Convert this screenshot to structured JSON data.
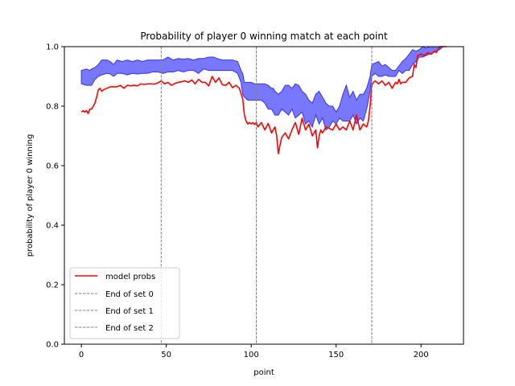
{
  "chart_data": {
    "type": "line",
    "title": "Probability of player 0 winning match at each point",
    "xlabel": "point",
    "ylabel": "probability of player 0 winning",
    "xlim": [
      -10,
      225
    ],
    "ylim": [
      0.0,
      1.0
    ],
    "xticks": [
      0,
      50,
      100,
      150,
      200
    ],
    "xtick_labels": [
      "0",
      "50",
      "100",
      "150",
      "200"
    ],
    "yticks": [
      0.0,
      0.2,
      0.4,
      0.6,
      0.8,
      1.0
    ],
    "ytick_labels": [
      "0.0",
      "0.2",
      "0.4",
      "0.6",
      "0.8",
      "1.0"
    ],
    "grid": false,
    "legend_position": "lower-left",
    "colors": {
      "model": "#ff0000",
      "band_fill": "#7070ff",
      "band_edge": "#3333ee",
      "set_line": "#808080"
    },
    "series": [
      {
        "name": "model probs",
        "style": "solid",
        "color": "#ff0000",
        "x": [
          0,
          1,
          2,
          3,
          4,
          5,
          6,
          7,
          8,
          9,
          10,
          11,
          12,
          13,
          15,
          17,
          19,
          21,
          23,
          25,
          27,
          29,
          31,
          33,
          35,
          37,
          39,
          41,
          43,
          45,
          47,
          49,
          51,
          53,
          55,
          57,
          59,
          61,
          63,
          65,
          67,
          69,
          71,
          73,
          75,
          77,
          79,
          81,
          83,
          85,
          87,
          89,
          91,
          93,
          95,
          96,
          97,
          98,
          99,
          100,
          101,
          102,
          103,
          104,
          106,
          108,
          110,
          112,
          114,
          115,
          116,
          117,
          118,
          120,
          122,
          124,
          126,
          128,
          130,
          132,
          134,
          136,
          138,
          139,
          140,
          141,
          142,
          144,
          146,
          148,
          150,
          152,
          154,
          156,
          158,
          160,
          162,
          164,
          166,
          168,
          169,
          170,
          171,
          172,
          173,
          175,
          177,
          179,
          181,
          183,
          185,
          186,
          187,
          188,
          189,
          191,
          193,
          195,
          196,
          197,
          198,
          200,
          202,
          204,
          206,
          208,
          209,
          210,
          211,
          212,
          213,
          214,
          215
        ],
        "y": [
          0.78,
          0.785,
          0.78,
          0.785,
          0.775,
          0.79,
          0.79,
          0.8,
          0.81,
          0.83,
          0.855,
          0.86,
          0.85,
          0.855,
          0.86,
          0.865,
          0.865,
          0.865,
          0.87,
          0.86,
          0.87,
          0.868,
          0.87,
          0.868,
          0.875,
          0.873,
          0.875,
          0.875,
          0.874,
          0.878,
          0.885,
          0.875,
          0.88,
          0.87,
          0.876,
          0.88,
          0.882,
          0.885,
          0.88,
          0.888,
          0.875,
          0.89,
          0.88,
          0.88,
          0.868,
          0.9,
          0.88,
          0.895,
          0.872,
          0.87,
          0.88,
          0.862,
          0.87,
          0.86,
          0.825,
          0.77,
          0.75,
          0.74,
          0.745,
          0.74,
          0.745,
          0.738,
          0.745,
          0.73,
          0.745,
          0.72,
          0.742,
          0.71,
          0.73,
          0.7,
          0.64,
          0.67,
          0.695,
          0.71,
          0.69,
          0.72,
          0.745,
          0.705,
          0.76,
          0.72,
          0.74,
          0.7,
          0.72,
          0.66,
          0.7,
          0.72,
          0.71,
          0.73,
          0.725,
          0.72,
          0.74,
          0.72,
          0.73,
          0.72,
          0.75,
          0.72,
          0.77,
          0.72,
          0.74,
          0.73,
          0.75,
          0.8,
          0.87,
          0.88,
          0.885,
          0.875,
          0.885,
          0.87,
          0.88,
          0.86,
          0.88,
          0.875,
          0.89,
          0.875,
          0.88,
          0.88,
          0.895,
          0.9,
          0.94,
          0.93,
          0.97,
          0.975,
          0.97,
          0.98,
          0.975,
          0.985,
          0.98,
          0.99,
          1.0,
          1.0,
          1.0,
          1.0,
          1.0
        ]
      }
    ],
    "band": {
      "x": [
        0,
        3,
        5,
        6,
        8,
        10,
        12,
        15,
        17,
        19,
        21,
        24,
        27,
        30,
        33,
        36,
        39,
        42,
        45,
        48,
        51,
        54,
        57,
        60,
        63,
        66,
        69,
        72,
        75,
        78,
        80,
        83,
        86,
        89,
        92,
        94,
        95,
        96,
        98,
        100,
        102,
        104,
        106,
        108,
        110,
        112,
        113,
        114,
        116,
        118,
        120,
        122,
        124,
        126,
        128,
        130,
        132,
        134,
        136,
        138,
        140,
        142,
        144,
        146,
        148,
        150,
        152,
        154,
        156,
        158,
        160,
        162,
        164,
        166,
        168,
        170,
        171,
        173,
        175,
        177,
        179,
        181,
        183,
        185,
        187,
        189,
        191,
        193,
        195,
        197,
        199,
        201,
        203,
        205,
        207,
        209,
        211,
        213,
        215
      ],
      "lower": [
        0.875,
        0.87,
        0.87,
        0.87,
        0.89,
        0.9,
        0.905,
        0.91,
        0.908,
        0.9,
        0.91,
        0.91,
        0.905,
        0.91,
        0.908,
        0.91,
        0.91,
        0.915,
        0.915,
        0.91,
        0.915,
        0.915,
        0.92,
        0.915,
        0.92,
        0.92,
        0.91,
        0.925,
        0.92,
        0.92,
        0.92,
        0.92,
        0.92,
        0.92,
        0.91,
        0.88,
        0.84,
        0.83,
        0.82,
        0.82,
        0.82,
        0.82,
        0.82,
        0.81,
        0.79,
        0.79,
        0.78,
        0.77,
        0.77,
        0.79,
        0.78,
        0.77,
        0.79,
        0.76,
        0.77,
        0.78,
        0.74,
        0.75,
        0.73,
        0.77,
        0.74,
        0.76,
        0.72,
        0.73,
        0.75,
        0.74,
        0.76,
        0.75,
        0.75,
        0.75,
        0.77,
        0.74,
        0.76,
        0.75,
        0.79,
        0.85,
        0.9,
        0.91,
        0.9,
        0.9,
        0.905,
        0.9,
        0.9,
        0.9,
        0.92,
        0.91,
        0.92,
        0.92,
        0.94,
        0.95,
        0.965,
        0.965,
        0.97,
        0.975,
        0.98,
        0.985,
        0.99,
        1.0,
        1.0
      ],
      "upper": [
        0.92,
        0.925,
        0.92,
        0.925,
        0.93,
        0.94,
        0.955,
        0.955,
        0.95,
        0.94,
        0.955,
        0.95,
        0.955,
        0.95,
        0.955,
        0.95,
        0.955,
        0.955,
        0.955,
        0.955,
        0.965,
        0.955,
        0.96,
        0.958,
        0.96,
        0.955,
        0.96,
        0.96,
        0.965,
        0.965,
        0.96,
        0.955,
        0.955,
        0.955,
        0.95,
        0.92,
        0.91,
        0.88,
        0.88,
        0.88,
        0.875,
        0.875,
        0.875,
        0.875,
        0.87,
        0.86,
        0.86,
        0.85,
        0.84,
        0.85,
        0.87,
        0.87,
        0.86,
        0.875,
        0.87,
        0.85,
        0.84,
        0.82,
        0.81,
        0.84,
        0.85,
        0.83,
        0.81,
        0.8,
        0.8,
        0.78,
        0.8,
        0.84,
        0.87,
        0.83,
        0.85,
        0.82,
        0.84,
        0.84,
        0.86,
        0.9,
        0.94,
        0.945,
        0.95,
        0.935,
        0.94,
        0.93,
        0.92,
        0.92,
        0.935,
        0.95,
        0.96,
        0.975,
        0.99,
        0.985,
        0.99,
        1.0,
        0.995,
        1.0,
        1.0,
        1.0,
        1.0,
        1.0,
        1.0
      ]
    },
    "set_ends": [
      {
        "name": "End of set 0",
        "x": 47
      },
      {
        "name": "End of set 1",
        "x": 103
      },
      {
        "name": "End of set 2",
        "x": 171
      }
    ],
    "legend": [
      "model probs",
      "End of set 0",
      "End of set 1",
      "End of set 2"
    ]
  }
}
